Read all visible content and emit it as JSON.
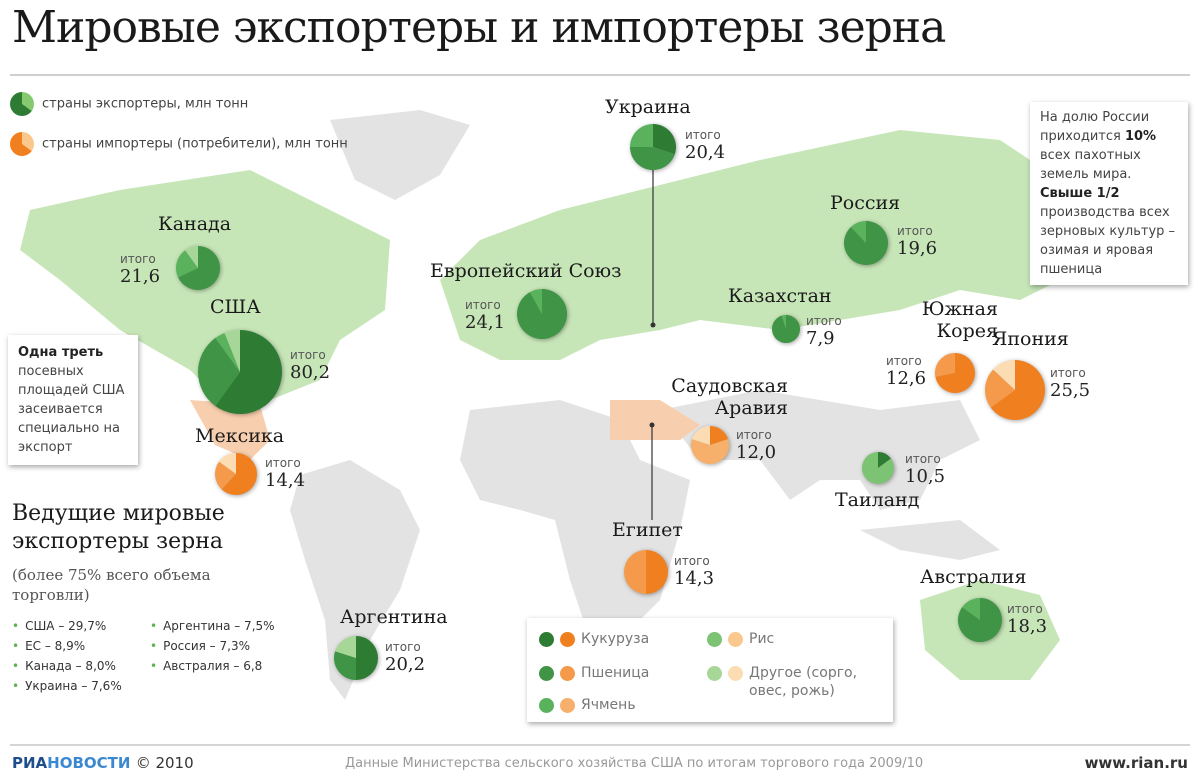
{
  "title": "Мировые экспортеры и импортеры зерна",
  "legend": {
    "exporters": "страны экспортеры, млн тонн",
    "importers": "страны импортеры (потребители), млн тонн"
  },
  "colors": {
    "export": {
      "corn": "#2e7b34",
      "wheat": "#3f9446",
      "barley": "#5bb25d",
      "rice": "#7cc374",
      "other": "#a7d699"
    },
    "import": {
      "corn": "#ef7f1f",
      "wheat": "#f49a4a",
      "barley": "#f7b06c",
      "rice": "#fac88d",
      "other": "#fcdcb2"
    },
    "land": "#e3e3e3",
    "land_export": "#c7e6b8",
    "land_import": "#f8cfae"
  },
  "total_label": "итого",
  "countries": [
    {
      "name": "Украина",
      "total": "20,4",
      "type": "export",
      "shares": {
        "wheat": 0.45,
        "corn": 0.3,
        "barley": 0.25
      }
    },
    {
      "name": "Канада",
      "total": "21,6",
      "type": "export",
      "shares": {
        "wheat": 0.68,
        "barley": 0.22,
        "other": 0.1
      }
    },
    {
      "name": "США",
      "total": "80,2",
      "type": "export",
      "shares": {
        "corn": 0.6,
        "wheat": 0.3,
        "barley": 0.04,
        "other": 0.06
      }
    },
    {
      "name": "Мексика",
      "total": "14,4",
      "type": "import",
      "shares": {
        "corn": 0.62,
        "wheat": 0.23,
        "other": 0.15
      }
    },
    {
      "name": "Европейский Союз",
      "total": "24,1",
      "type": "export",
      "shares": {
        "wheat": 0.92,
        "barley": 0.08
      }
    },
    {
      "name": "Россия",
      "total": "19,6",
      "type": "export",
      "shares": {
        "wheat": 0.88,
        "barley": 0.12
      }
    },
    {
      "name": "Казахстан",
      "total": "7,9",
      "type": "export",
      "shares": {
        "wheat": 0.95,
        "barley": 0.05
      }
    },
    {
      "name": "Южная Корея",
      "total": "12,6",
      "type": "import",
      "shares": {
        "corn": 0.72,
        "wheat": 0.28
      }
    },
    {
      "name": "Япония",
      "total": "25,5",
      "type": "import",
      "shares": {
        "corn": 0.65,
        "wheat": 0.22,
        "other": 0.13
      }
    },
    {
      "name": "Саудовская Аравия",
      "total": "12,0",
      "type": "import",
      "shares": {
        "barley": 0.6,
        "corn": 0.2,
        "other": 0.2
      }
    },
    {
      "name": "Таиланд",
      "total": "10,5",
      "type": "export",
      "shares": {
        "corn": 0.15,
        "rice": 0.85
      }
    },
    {
      "name": "Египет",
      "total": "14,3",
      "type": "import",
      "shares": {
        "corn": 0.5,
        "wheat": 0.5
      }
    },
    {
      "name": "Австралия",
      "total": "18,3",
      "type": "export",
      "shares": {
        "wheat": 0.85,
        "barley": 0.15
      }
    },
    {
      "name": "Аргентина",
      "total": "20,2",
      "type": "export",
      "shares": {
        "corn": 0.5,
        "wheat": 0.3,
        "other": 0.2
      }
    }
  ],
  "usa_note": {
    "bold": "Одна треть",
    "text": "посевных площадей США засеивается специально на экспорт"
  },
  "russia_note": {
    "t1": "На долю России приходится ",
    "b1": "10%",
    "t2": " всех пахотных земель мира. ",
    "b2": "Свыше 1/2",
    "t3": " производства всех зерновых культур – озимая и яровая пшеница"
  },
  "leaders": {
    "title": "Ведущие мировые экспортеры зерна",
    "subtitle": "(более 75% всего объема торговли)",
    "items": [
      "США – 29,7%",
      "ЕС – 8,9%",
      "Канада – 8,0%",
      "Украина – 7,6%",
      "Аргентина – 7,5%",
      "Россия – 7,3%",
      "Австралия – 6,8"
    ]
  },
  "crops": {
    "corn": "Кукуруза",
    "wheat": "Пшеница",
    "barley": "Ячмень",
    "rice": "Рис",
    "other": "Другое (сорго, овес, рожь)"
  },
  "footer": {
    "logo_a": "РИА",
    "logo_b": "НОВОСТИ",
    "year": "© 2010",
    "source": "Данные Министерства сельского хозяйства США по итогам торгового года 2009/10",
    "url": "www.rian.ru"
  }
}
